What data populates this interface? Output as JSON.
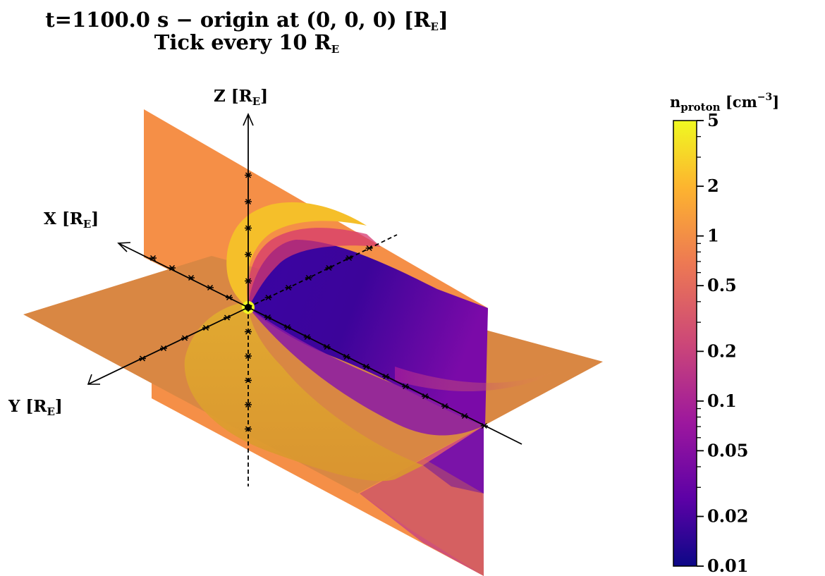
{
  "title": {
    "line1_prefix": "t=1100.0 s − origin at (0, 0, 0) [R",
    "line1_sub": "E",
    "line1_suffix": "]",
    "line2_prefix": "Tick every 10 R",
    "line2_sub": "E"
  },
  "axes": {
    "x": {
      "prefix": "X [R",
      "sub": "E",
      "suffix": "]"
    },
    "y": {
      "prefix": "Y [R",
      "sub": "E",
      "suffix": "]"
    },
    "z": {
      "prefix": "Z [R",
      "sub": "E",
      "suffix": "]"
    }
  },
  "colorbar": {
    "label_main": "n",
    "label_sub": "proton",
    "label_unit": "[cm",
    "label_sup": "−3",
    "label_close": "]",
    "colormap": "plasma",
    "scale": "log",
    "colors": [
      "#0d0887",
      "#5c01a6",
      "#9c179e",
      "#cc4778",
      "#ed7953",
      "#fdb42f",
      "#f0f921"
    ]
  },
  "chart_data": {
    "type": "heatmap",
    "variable": "proton number density",
    "scale": "log",
    "range": [
      0.01,
      5
    ],
    "tick_labels": [
      "5",
      "2",
      "1",
      "0.5",
      "0.2",
      "0.1",
      "0.05",
      "0.02",
      "0.01"
    ],
    "tick_values": [
      5,
      2,
      1,
      0.5,
      0.2,
      0.1,
      0.05,
      0.02,
      0.01
    ],
    "time_s": 1100.0,
    "origin": [
      0,
      0,
      0
    ],
    "tick_spacing_RE": 10
  }
}
